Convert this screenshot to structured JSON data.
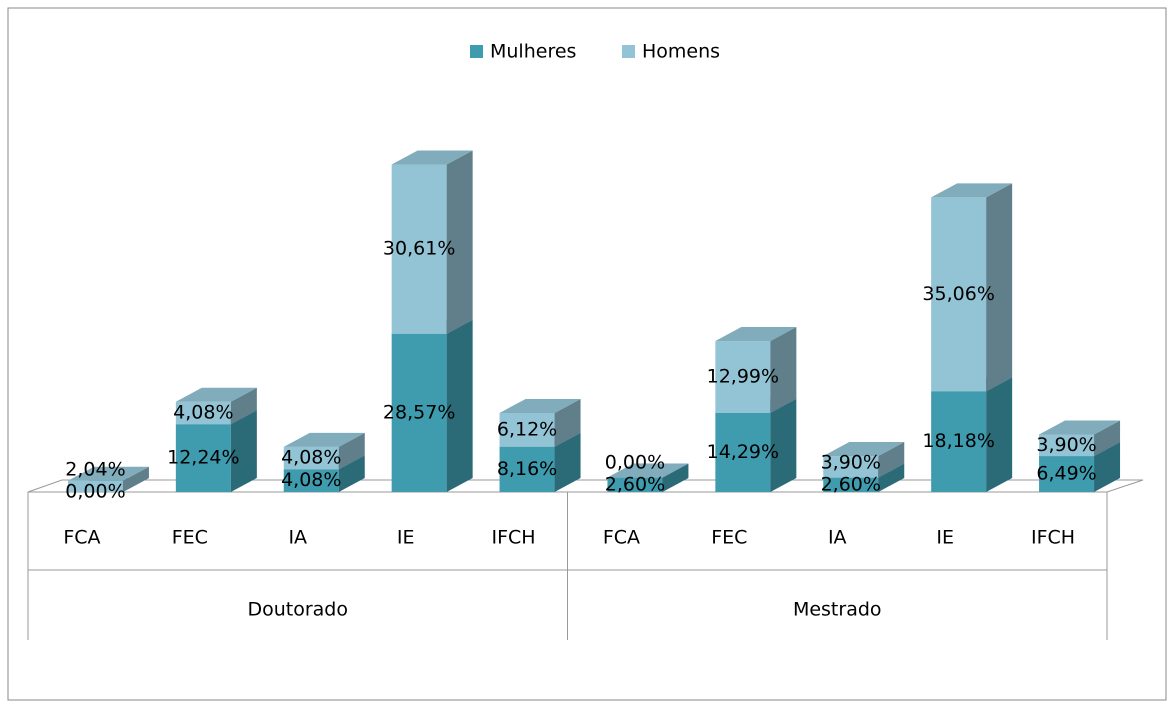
{
  "chart_data": {
    "type": "bar3d-stacked",
    "categories": [
      "FCA",
      "FEC",
      "IA",
      "IE",
      "IFCH",
      "FCA",
      "FEC",
      "IA",
      "IE",
      "IFCH"
    ],
    "groups": [
      "Doutorado",
      "Mestrado"
    ],
    "series": [
      {
        "name": "Mulheres",
        "color": "#3f9caf",
        "values": [
          0.0,
          12.24,
          4.08,
          28.57,
          8.16,
          2.6,
          14.29,
          2.6,
          18.18,
          6.49
        ],
        "value_labels": [
          "0,00%",
          "12,24%",
          "4,08%",
          "28,57%",
          "8,16%",
          "2,60%",
          "14,29%",
          "2,60%",
          "18,18%",
          "6,49%"
        ]
      },
      {
        "name": "Homens",
        "color": "#93c4d5",
        "values": [
          2.04,
          4.08,
          4.08,
          30.61,
          6.12,
          0.0,
          12.99,
          3.9,
          35.06,
          3.9
        ],
        "value_labels": [
          "2,04%",
          "4,08%",
          "4,08%",
          "30,61%",
          "6,12%",
          "0,00%",
          "12,99%",
          "3,90%",
          "35,06%",
          "3,90%"
        ]
      }
    ],
    "ylim": [
      0,
      60
    ],
    "legend": "top"
  }
}
